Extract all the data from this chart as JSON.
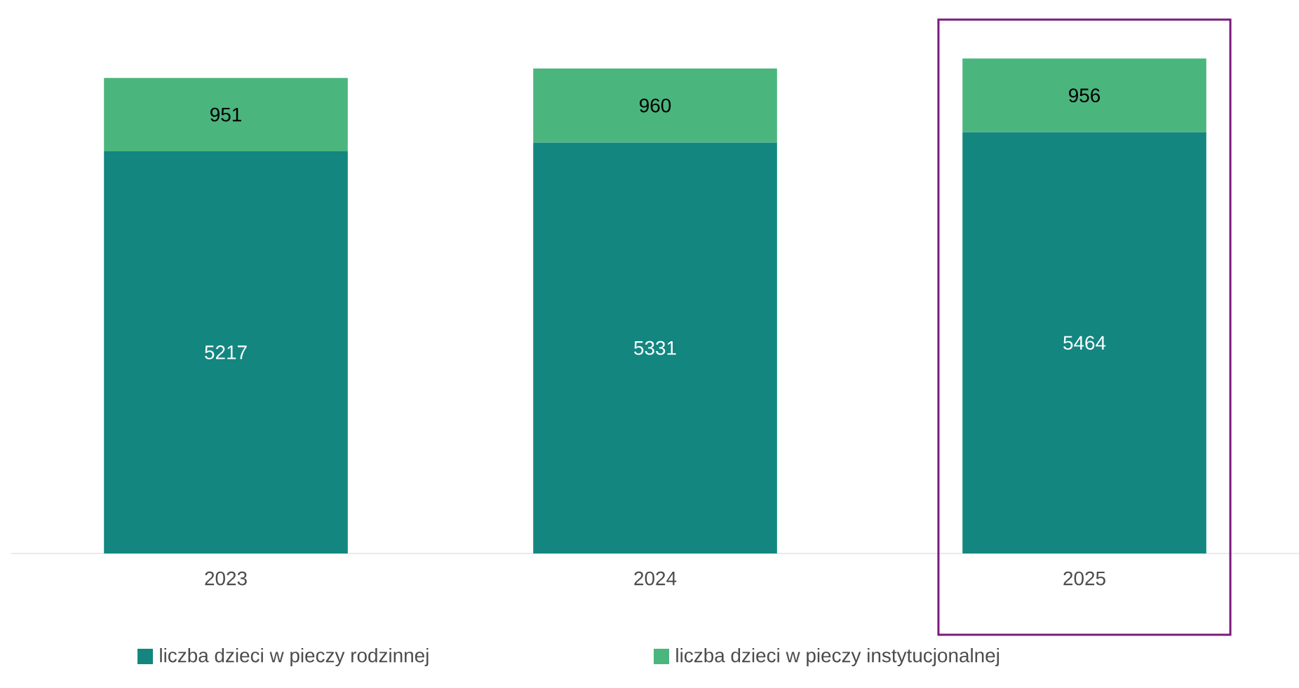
{
  "chart_data": {
    "type": "bar",
    "stacked": true,
    "categories": [
      "2023",
      "2024",
      "2025"
    ],
    "series": [
      {
        "name": "liczba dzieci w pieczy rodzinnej",
        "color": "#138680",
        "values": [
          5217,
          5331,
          5464
        ]
      },
      {
        "name": "liczba dzieci w pieczy instytucjonalnej",
        "color": "#4bb57e",
        "values": [
          951,
          960,
          956
        ]
      }
    ],
    "data_labels": true,
    "legend": "bottom"
  }
}
